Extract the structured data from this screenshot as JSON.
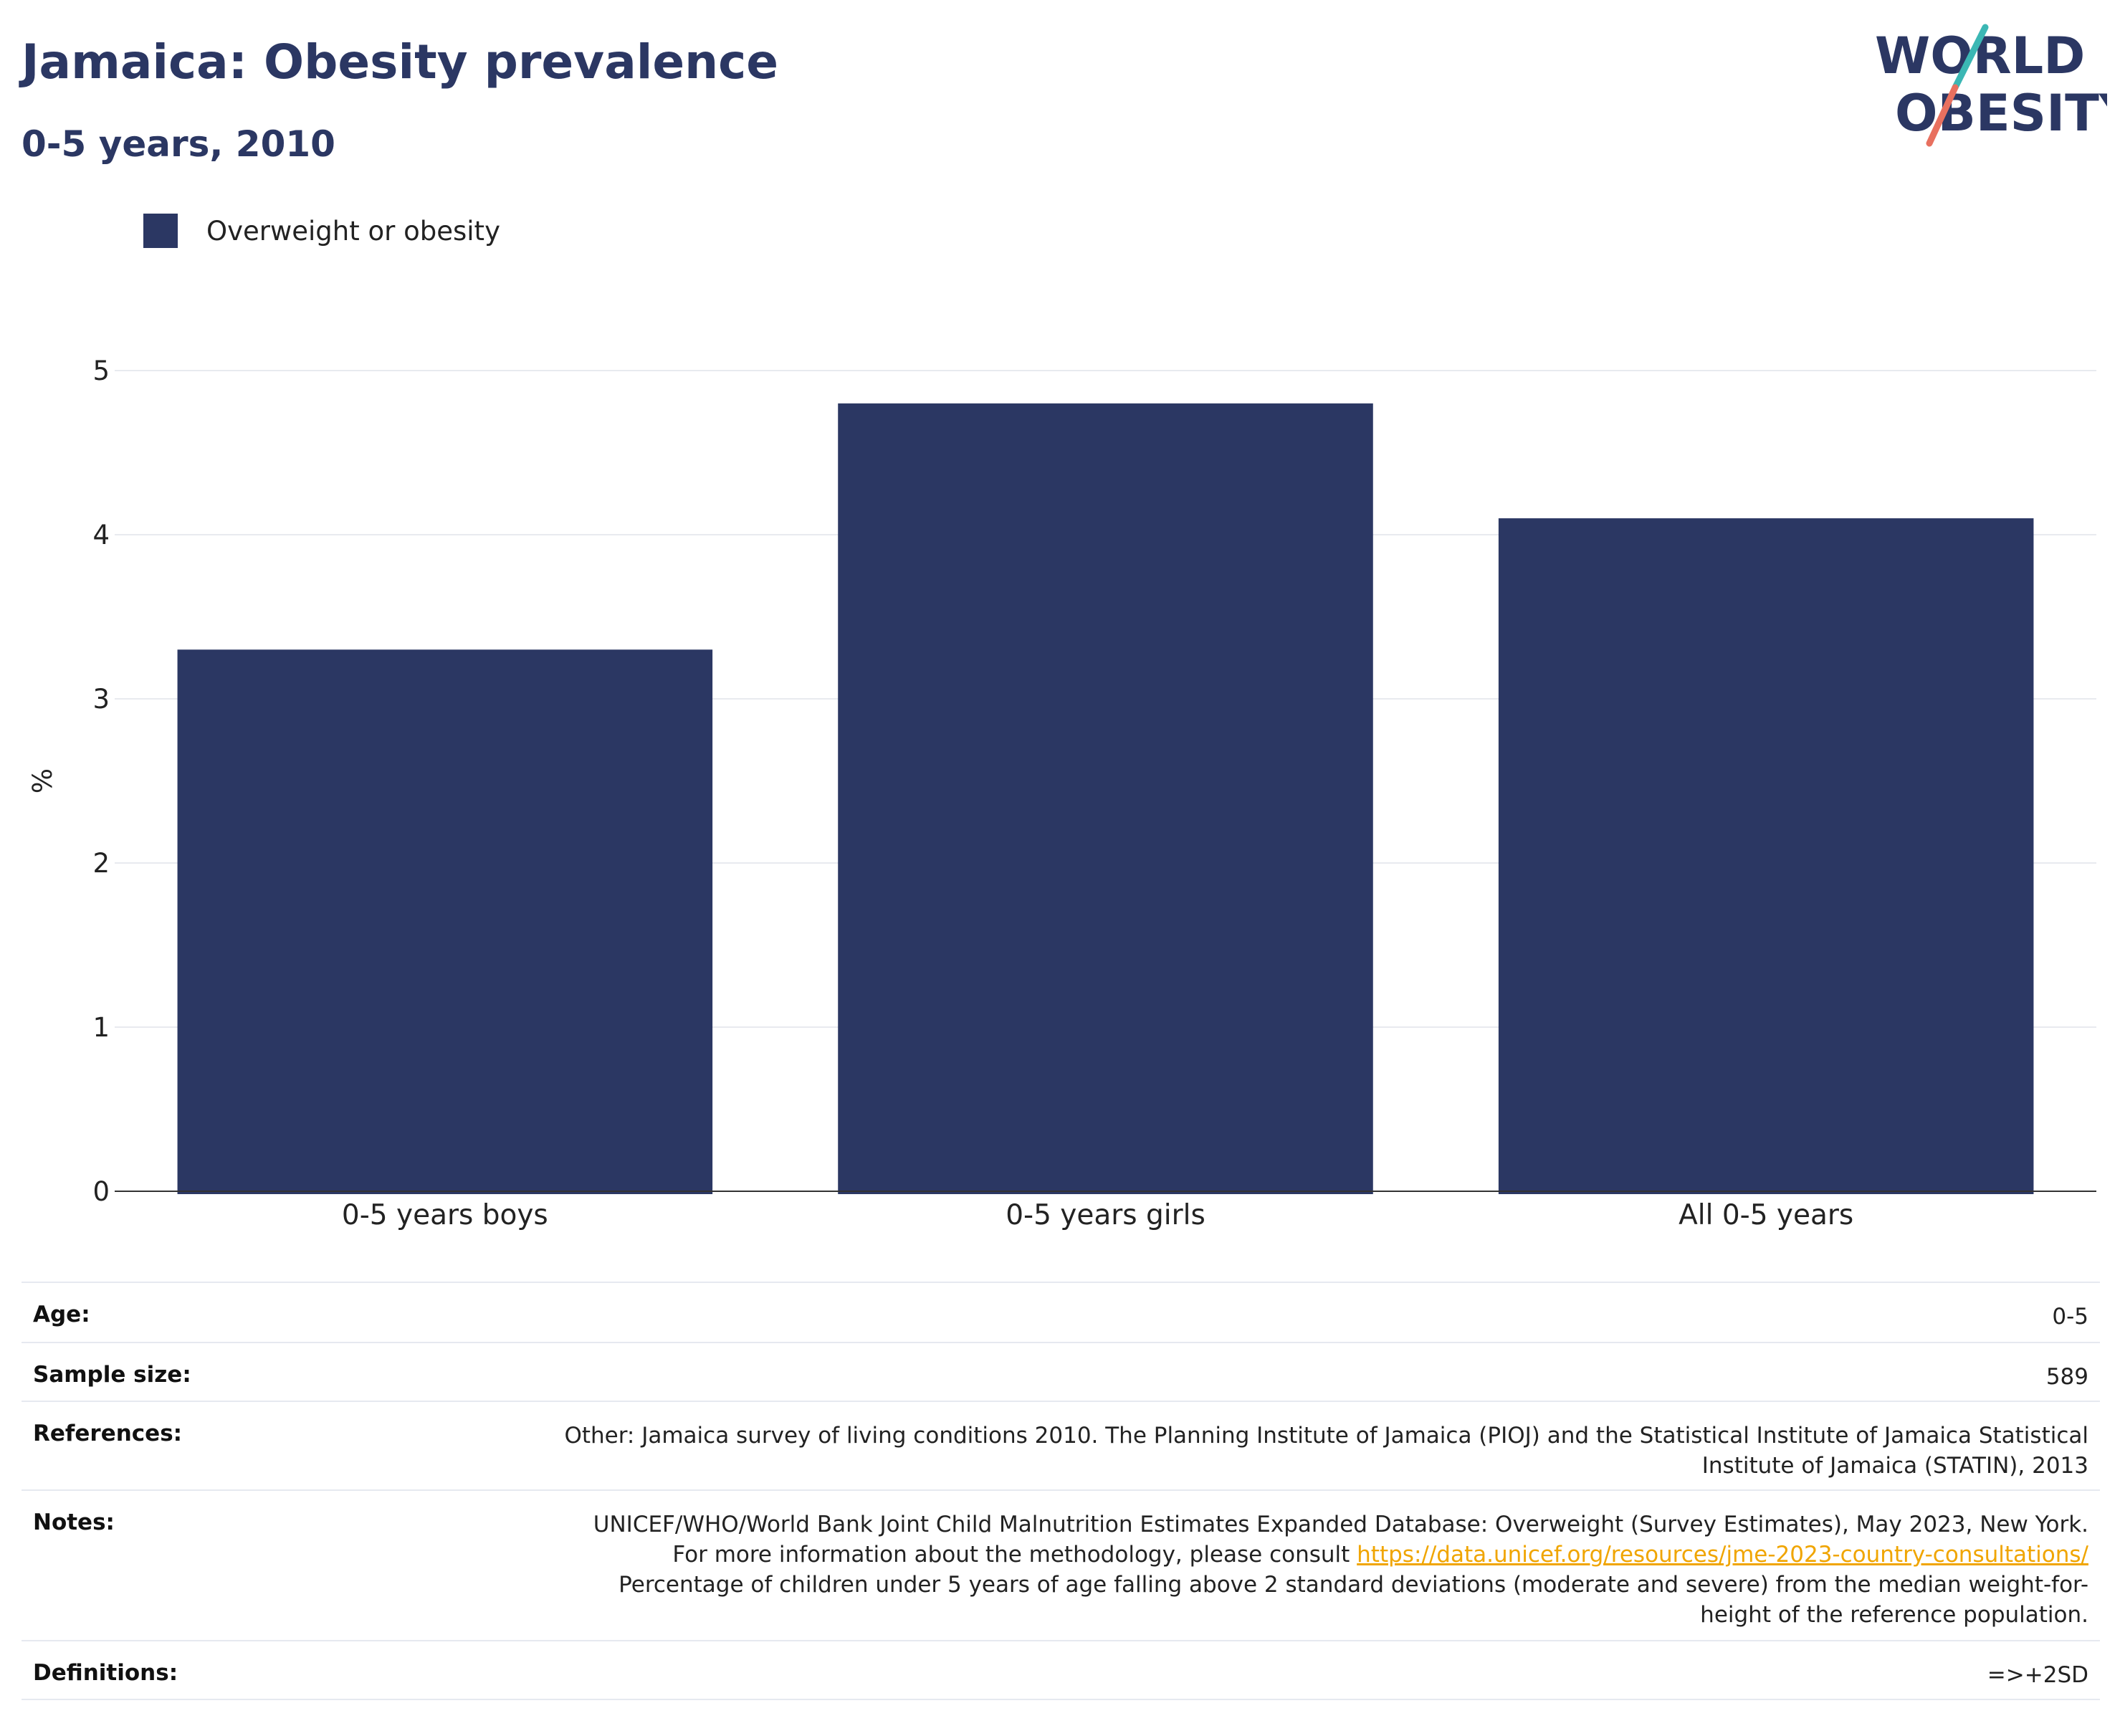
{
  "header": {
    "title": "Jamaica: Obesity prevalence",
    "subtitle": "0-5 years, 2010"
  },
  "logo": {
    "line1": "WORLD",
    "line2": "OBESITY"
  },
  "colors": {
    "bar": "#2b3763",
    "title": "#2b3763",
    "link": "#f0a500",
    "logo_teal": "#3bb7b4",
    "logo_coral": "#e8705f"
  },
  "legend": {
    "label": "Overweight or obesity"
  },
  "chart_data": {
    "type": "bar",
    "categories": [
      "0-5 years boys",
      "0-5 years girls",
      "All 0-5 years"
    ],
    "series": [
      {
        "name": "Overweight or obesity",
        "values": [
          3.3,
          4.8,
          4.1
        ]
      }
    ],
    "xlabel": "",
    "ylabel": "%",
    "ylim": [
      0,
      5
    ],
    "yticks": [
      0,
      1,
      2,
      3,
      4,
      5
    ],
    "grid": true,
    "legend_position": "top-left"
  },
  "info": {
    "age": {
      "label": "Age:",
      "value": "0-5"
    },
    "sample": {
      "label": "Sample size:",
      "value": "589"
    },
    "references": {
      "label": "References:",
      "value": "Other: Jamaica survey of living conditions 2010. The Planning Institute of Jamaica (PIOJ) and the Statistical Institute of Jamaica Statistical Institute of Jamaica (STATIN), 2013"
    },
    "notes": {
      "label": "Notes:",
      "text_before": "UNICEF/WHO/World Bank Joint Child Malnutrition Estimates Expanded Database: Overweight (Survey Estimates), May 2023, New York. For more information about the methodology, please consult ",
      "link": "https://data.unicef.org/resources/jme-2023-country-consultations/",
      "text_after": " Percentage of children under 5 years of age falling above 2 standard deviations (moderate and severe) from the median weight-for-height of the reference population."
    },
    "definitions": {
      "label": "Definitions:",
      "value": "=>+2SD"
    }
  }
}
